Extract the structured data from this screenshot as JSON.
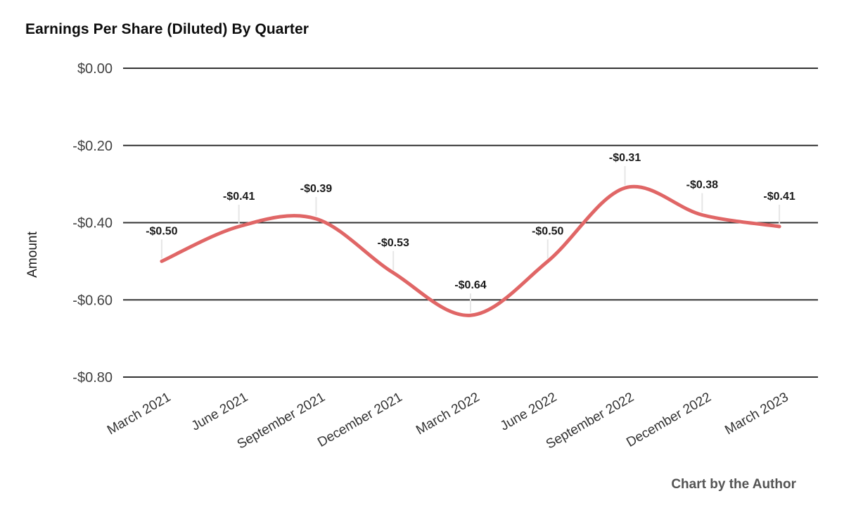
{
  "chart_data": {
    "type": "line",
    "title": "Earnings Per Share (Diluted) By Quarter",
    "xlabel": "",
    "ylabel": "Amount",
    "categories": [
      "March 2021",
      "June 2021",
      "September 2021",
      "December 2021",
      "March 2022",
      "June 2022",
      "September 2022",
      "December 2022",
      "March 2023"
    ],
    "values": [
      -0.5,
      -0.41,
      -0.39,
      -0.53,
      -0.64,
      -0.5,
      -0.31,
      -0.38,
      -0.41
    ],
    "point_labels": [
      "-$0.50",
      "-$0.41",
      "-$0.39",
      "-$0.53",
      "-$0.64",
      "-$0.50",
      "-$0.31",
      "-$0.38",
      "-$0.41"
    ],
    "y_ticks": [
      {
        "label": "$0.00",
        "value": 0
      },
      {
        "label": "-$0.20",
        "value": -0.2
      },
      {
        "label": "-$0.40",
        "value": -0.4
      },
      {
        "label": "-$0.60",
        "value": -0.6
      },
      {
        "label": "-$0.80",
        "value": -0.8
      }
    ],
    "ylim": [
      -0.8,
      0
    ],
    "grid": true,
    "legend_position": "none",
    "smooth": true,
    "colors": {
      "line": "#e06666",
      "grid": "#333333",
      "callout": "#e6e6e6",
      "data_label": "#1a1a1a",
      "axis_text": "#424242",
      "x_axis_text": "#333333"
    }
  },
  "footer": "Chart by the Author"
}
